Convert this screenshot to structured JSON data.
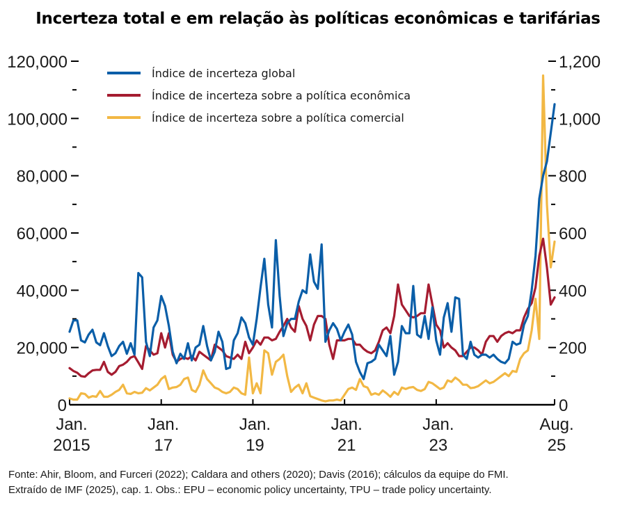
{
  "chart_data": {
    "type": "line",
    "title": "Incerteza total e em relação às políticas econômicas e tarifárias",
    "xlabel": "",
    "ylabel_left": "",
    "ylabel_right": "",
    "x_start": "2015-01",
    "x_end": "2025-08",
    "frequency": "monthly",
    "x_tick_labels": [
      {
        "month": "2015-01",
        "line1": "Jan.",
        "line2": "2015"
      },
      {
        "month": "2017-01",
        "line1": "Jan.",
        "line2": "17"
      },
      {
        "month": "2019-01",
        "line1": "Jan.",
        "line2": "19"
      },
      {
        "month": "2021-01",
        "line1": "Jan.",
        "line2": "21"
      },
      {
        "month": "2023-01",
        "line1": "Jan.",
        "line2": "23"
      },
      {
        "month": "2025-08",
        "line1": "Aug.",
        "line2": "25"
      }
    ],
    "y_left": {
      "ylim": [
        0,
        120000
      ],
      "ticks": [
        "0",
        "20,000",
        "40,000",
        "60,000",
        "80,000",
        "100,000",
        "120,000"
      ],
      "tick_values": [
        0,
        20000,
        40000,
        60000,
        80000,
        100000,
        120000
      ],
      "minor_tick_values": [
        10000,
        30000,
        50000,
        70000,
        90000,
        110000
      ]
    },
    "y_right": {
      "ylim": [
        0,
        1200
      ],
      "ticks": [
        "0",
        "200",
        "400",
        "600",
        "800",
        "1,000",
        "1,200"
      ],
      "tick_values": [
        0,
        200,
        400,
        600,
        800,
        1000,
        1200
      ],
      "minor_tick_values": [
        100,
        300,
        500,
        700,
        900,
        1100
      ]
    },
    "grid": false,
    "legend_position": "top-left",
    "series": [
      {
        "name": "Índice de incerteza global",
        "axis": "left",
        "color": "#0a5ea8",
        "values": [
          25500,
          29500,
          29500,
          22500,
          21800,
          24500,
          26200,
          21800,
          20800,
          25000,
          20500,
          17000,
          18000,
          20500,
          22000,
          17800,
          21500,
          17500,
          46000,
          44500,
          22000,
          17000,
          27000,
          29500,
          38000,
          34500,
          27500,
          18500,
          14500,
          17800,
          16000,
          21500,
          15500,
          20000,
          21000,
          27500,
          20500,
          15500,
          18500,
          25500,
          22000,
          12500,
          13000,
          22500,
          25000,
          30500,
          28500,
          23500,
          21000,
          30000,
          41000,
          51000,
          35000,
          27000,
          57500,
          38000,
          24000,
          28500,
          30000,
          30000,
          36000,
          40000,
          39000,
          52500,
          43000,
          40500,
          56000,
          22000,
          26000,
          28500,
          26500,
          22500,
          25500,
          28000,
          24500,
          15000,
          11500,
          9000,
          14500,
          15000,
          16000,
          21000,
          19000,
          17000,
          24000,
          10500,
          15000,
          27500,
          25000,
          25000,
          41500,
          24500,
          23500,
          31000,
          23000,
          34000,
          22500,
          17500,
          30500,
          35500,
          25500,
          37500,
          37000,
          17500,
          16000,
          22000,
          17500,
          16500,
          17500,
          17500,
          16500,
          17500,
          16000,
          15000,
          14500,
          16000,
          22000,
          21000,
          21500,
          28000,
          31000,
          40000,
          52000,
          72000,
          80000,
          85000,
          95000,
          105000
        ]
      },
      {
        "name": "Índice de incerteza sobre a política econômica",
        "axis": "right",
        "color": "#a51c30",
        "values": [
          128,
          118,
          112,
          100,
          98,
          110,
          120,
          122,
          122,
          150,
          115,
          105,
          115,
          135,
          140,
          150,
          165,
          170,
          148,
          125,
          205,
          190,
          175,
          180,
          250,
          200,
          250,
          175,
          150,
          160,
          165,
          160,
          170,
          155,
          185,
          175,
          165,
          155,
          210,
          200,
          190,
          170,
          165,
          160,
          175,
          160,
          220,
          180,
          200,
          225,
          210,
          235,
          235,
          225,
          230,
          255,
          275,
          300,
          270,
          255,
          345,
          300,
          275,
          225,
          280,
          310,
          310,
          300,
          210,
          160,
          225,
          225,
          225,
          230,
          230,
          210,
          210,
          195,
          185,
          180,
          190,
          220,
          260,
          270,
          250,
          310,
          420,
          350,
          330,
          310,
          305,
          310,
          320,
          320,
          420,
          350,
          280,
          260,
          200,
          215,
          200,
          190,
          170,
          170,
          185,
          200,
          200,
          190,
          175,
          220,
          240,
          240,
          220,
          240,
          250,
          255,
          250,
          260,
          260,
          305,
          335,
          355,
          410,
          520,
          580,
          480,
          350,
          375
        ]
      },
      {
        "name": "Índice de incerteza sobre a política comercial",
        "axis": "right",
        "color": "#f2b844",
        "values": [
          22,
          18,
          18,
          40,
          38,
          25,
          30,
          28,
          48,
          28,
          28,
          35,
          45,
          52,
          70,
          40,
          38,
          45,
          40,
          42,
          58,
          50,
          60,
          70,
          90,
          100,
          55,
          60,
          62,
          70,
          90,
          95,
          52,
          45,
          70,
          120,
          90,
          75,
          60,
          55,
          45,
          40,
          45,
          60,
          55,
          40,
          35,
          165,
          40,
          75,
          40,
          190,
          180,
          105,
          150,
          160,
          175,
          100,
          45,
          60,
          70,
          40,
          75,
          30,
          25,
          20,
          15,
          12,
          15,
          15,
          18,
          15,
          35,
          55,
          60,
          52,
          90,
          65,
          60,
          35,
          40,
          35,
          50,
          40,
          28,
          45,
          35,
          60,
          55,
          60,
          62,
          52,
          48,
          55,
          80,
          75,
          65,
          55,
          60,
          85,
          80,
          95,
          85,
          70,
          70,
          58,
          60,
          65,
          75,
          85,
          75,
          80,
          90,
          100,
          110,
          100,
          118,
          115,
          160,
          180,
          190,
          260,
          370,
          230,
          1150,
          700,
          480,
          570
        ]
      }
    ]
  },
  "footer": {
    "line1": "Fonte: Ahir, Bloom, and Furceri (2022); Caldara and others (2020); Davis (2016); cálculos da equipe do FMI.",
    "line2": "Extraído de IMF (2025), cap. 1. Obs.: EPU – economic policy uncertainty, TPU – trade policy uncertainty."
  }
}
